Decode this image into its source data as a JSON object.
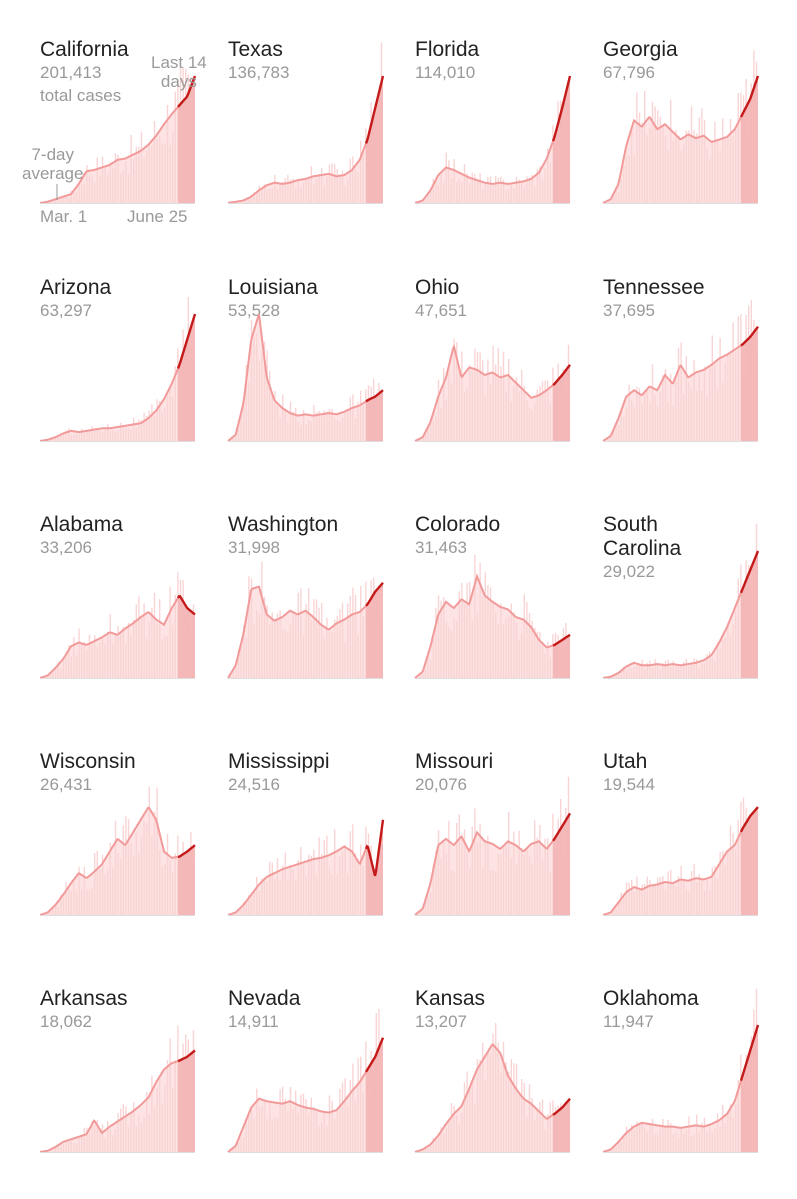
{
  "colors": {
    "bar": "#f9d4d4",
    "area": "#fde3e3",
    "recent_shade": "#f3b2b2",
    "avg_line": "#f29a9a",
    "recent_line": "#c41a1a",
    "axis": "#dddddd"
  },
  "annotations": {
    "last14": "Last 14\ndays",
    "avg": "7-day\naverage",
    "start": "Mar. 1",
    "end": "June 25",
    "total_suffix": "total cases"
  },
  "chart_data": [
    {
      "type": "area",
      "state": "California",
      "total": "201,413",
      "recent_window_days": 14,
      "x_range": [
        "Mar. 1",
        "June 25"
      ],
      "avg_series": [
        0,
        0.1,
        0.3,
        0.5,
        0.7,
        1.5,
        2.5,
        2.6,
        2.8,
        3,
        3.4,
        3.5,
        3.8,
        4.1,
        4.6,
        5.3,
        6.2,
        7.0,
        7.7,
        8.4,
        10
      ]
    },
    {
      "type": "area",
      "state": "Texas",
      "total": "136,783",
      "recent_window_days": 14,
      "x_range": [
        "Mar. 1",
        "June 25"
      ],
      "avg_series": [
        0,
        0.1,
        0.2,
        0.5,
        1.0,
        1.4,
        1.6,
        1.5,
        1.6,
        1.8,
        1.9,
        2.1,
        2.2,
        2.3,
        2.1,
        2.2,
        2.6,
        3.4,
        5.0,
        7.5,
        10
      ]
    },
    {
      "type": "area",
      "state": "Florida",
      "total": "114,010",
      "recent_window_days": 14,
      "x_range": [
        "Mar. 1",
        "June 25"
      ],
      "avg_series": [
        0,
        0.2,
        1.0,
        2.2,
        2.8,
        2.6,
        2.3,
        2.0,
        1.8,
        1.6,
        1.5,
        1.6,
        1.5,
        1.6,
        1.7,
        1.9,
        2.4,
        3.5,
        5.2,
        7.5,
        10
      ]
    },
    {
      "type": "area",
      "state": "Georgia",
      "total": "67,796",
      "recent_window_days": 14,
      "x_range": [
        "Mar. 1",
        "June 25"
      ],
      "avg_series": [
        0,
        0.3,
        1.5,
        4.5,
        6.5,
        6.0,
        6.8,
        5.8,
        6.2,
        5.6,
        5.0,
        5.4,
        5.1,
        5.3,
        4.8,
        5.0,
        5.2,
        5.8,
        7.0,
        8.2,
        10
      ]
    },
    {
      "type": "area",
      "state": "Arizona",
      "total": "63,297",
      "recent_window_days": 14,
      "x_range": [
        "Mar. 1",
        "June 25"
      ],
      "avg_series": [
        0,
        0.1,
        0.3,
        0.6,
        0.8,
        0.7,
        0.8,
        0.9,
        1.0,
        1.0,
        1.1,
        1.2,
        1.3,
        1.4,
        1.8,
        2.4,
        3.3,
        4.5,
        6.0,
        8.0,
        10
      ]
    },
    {
      "type": "area",
      "state": "Louisiana",
      "total": "53,528",
      "recent_window_days": 14,
      "x_range": [
        "Mar. 1",
        "June 25"
      ],
      "avg_series": [
        0,
        0.5,
        3.0,
        8.0,
        10.0,
        5.0,
        3.2,
        2.6,
        2.2,
        2.0,
        2.1,
        2.0,
        2.1,
        2.2,
        2.1,
        2.3,
        2.6,
        2.8,
        3.2,
        3.5,
        4.0
      ]
    },
    {
      "type": "area",
      "state": "Ohio",
      "total": "47,651",
      "recent_window_days": 14,
      "x_range": [
        "Mar. 1",
        "June 25"
      ],
      "avg_series": [
        0,
        0.3,
        1.5,
        3.5,
        5.0,
        7.5,
        5.0,
        5.8,
        5.6,
        5.2,
        5.4,
        5.0,
        5.2,
        4.6,
        4.0,
        3.4,
        3.6,
        4.0,
        4.5,
        5.2,
        6.0
      ]
    },
    {
      "type": "area",
      "state": "Tennessee",
      "total": "37,695",
      "recent_window_days": 14,
      "x_range": [
        "Mar. 1",
        "June 25"
      ],
      "avg_series": [
        0,
        0.4,
        1.8,
        3.5,
        4.0,
        3.6,
        4.3,
        4.0,
        5.2,
        4.5,
        6.0,
        5.0,
        5.4,
        5.6,
        6.0,
        6.5,
        6.8,
        7.2,
        7.6,
        8.2,
        9.0
      ]
    },
    {
      "type": "area",
      "state": "Alabama",
      "total": "33,206",
      "recent_window_days": 14,
      "x_range": [
        "Mar. 1",
        "June 25"
      ],
      "avg_series": [
        0,
        0.2,
        0.8,
        1.5,
        2.5,
        2.8,
        2.6,
        2.9,
        3.2,
        3.6,
        3.4,
        3.9,
        4.3,
        4.8,
        5.2,
        4.6,
        4.2,
        5.5,
        6.5,
        5.5,
        5.0
      ]
    },
    {
      "type": "area",
      "state": "Washington",
      "total": "31,998",
      "recent_window_days": 14,
      "x_range": [
        "Mar. 1",
        "June 25"
      ],
      "avg_series": [
        0,
        1.0,
        3.5,
        7.0,
        7.2,
        5.0,
        4.5,
        4.8,
        5.3,
        5.0,
        5.3,
        4.8,
        4.2,
        3.8,
        4.3,
        4.6,
        5.0,
        5.2,
        5.8,
        6.8,
        7.5
      ]
    },
    {
      "type": "area",
      "state": "Colorado",
      "total": "31,463",
      "recent_window_days": 14,
      "x_range": [
        "Mar. 1",
        "June 25"
      ],
      "avg_series": [
        0,
        0.5,
        2.5,
        5.0,
        6.0,
        5.5,
        6.2,
        5.8,
        8.0,
        6.5,
        6.0,
        5.6,
        5.4,
        4.8,
        4.6,
        4.0,
        3.0,
        2.4,
        2.6,
        3.0,
        3.4
      ]
    },
    {
      "type": "area",
      "state": "South\nCarolina",
      "total": "29,022",
      "recent_window_days": 14,
      "x_range": [
        "Mar. 1",
        "June 25"
      ],
      "avg_series": [
        0,
        0.1,
        0.4,
        0.9,
        1.2,
        1.0,
        1.0,
        1.1,
        1.0,
        1.1,
        1.0,
        1.1,
        1.2,
        1.4,
        1.8,
        2.8,
        4.0,
        5.5,
        7.0,
        8.5,
        10
      ]
    },
    {
      "type": "area",
      "state": "Wisconsin",
      "total": "26,431",
      "recent_window_days": 14,
      "x_range": [
        "Mar. 1",
        "June 25"
      ],
      "avg_series": [
        0,
        0.2,
        0.8,
        1.6,
        2.5,
        3.3,
        2.9,
        3.4,
        4.0,
        5.0,
        6.0,
        5.5,
        6.5,
        7.5,
        8.5,
        7.5,
        5.0,
        4.5,
        4.6,
        5.0,
        5.5
      ]
    },
    {
      "type": "area",
      "state": "Mississippi",
      "total": "24,516",
      "recent_window_days": 14,
      "x_range": [
        "Mar. 1",
        "June 25"
      ],
      "avg_series": [
        0,
        0.2,
        0.8,
        1.6,
        2.4,
        3.0,
        3.3,
        3.6,
        3.8,
        4.0,
        4.2,
        4.4,
        4.5,
        4.7,
        5.0,
        5.4,
        5.0,
        4.0,
        5.5,
        3.0,
        7.5
      ]
    },
    {
      "type": "area",
      "state": "Missouri",
      "total": "20,076",
      "recent_window_days": 14,
      "x_range": [
        "Mar. 1",
        "June 25"
      ],
      "avg_series": [
        0,
        0.5,
        2.5,
        5.5,
        6.0,
        5.5,
        6.2,
        5.0,
        6.5,
        5.8,
        5.6,
        5.2,
        5.8,
        5.5,
        5.0,
        5.6,
        5.8,
        5.2,
        6.0,
        7.0,
        8.0
      ]
    },
    {
      "type": "area",
      "state": "Utah",
      "total": "19,544",
      "recent_window_days": 14,
      "x_range": [
        "Mar. 1",
        "June 25"
      ],
      "avg_series": [
        0,
        0.2,
        1.0,
        1.8,
        2.2,
        2.0,
        2.3,
        2.4,
        2.6,
        2.5,
        2.8,
        2.7,
        2.9,
        2.8,
        3.0,
        4.0,
        5.0,
        5.5,
        6.8,
        7.8,
        8.5
      ]
    },
    {
      "type": "area",
      "state": "Arkansas",
      "total": "18,062",
      "recent_window_days": 14,
      "x_range": [
        "Mar. 1",
        "June 25"
      ],
      "avg_series": [
        0,
        0.1,
        0.4,
        0.8,
        1.0,
        1.2,
        1.4,
        2.5,
        1.5,
        2.0,
        2.4,
        2.8,
        3.2,
        3.7,
        4.3,
        5.5,
        6.5,
        7.0,
        7.2,
        7.5,
        8.0
      ]
    },
    {
      "type": "area",
      "state": "Nevada",
      "total": "14,911",
      "recent_window_days": 14,
      "x_range": [
        "Mar. 1",
        "June 25"
      ],
      "avg_series": [
        0,
        0.5,
        2.0,
        3.5,
        4.2,
        4.0,
        3.9,
        3.8,
        4.0,
        3.7,
        3.5,
        3.4,
        3.2,
        3.1,
        3.3,
        4.0,
        4.8,
        5.5,
        6.5,
        7.5,
        9.0
      ]
    },
    {
      "type": "area",
      "state": "Kansas",
      "total": "13,207",
      "recent_window_days": 14,
      "x_range": [
        "Mar. 1",
        "June 25"
      ],
      "avg_series": [
        0,
        0.2,
        0.6,
        1.3,
        2.2,
        3.0,
        3.6,
        5.0,
        6.5,
        7.5,
        8.5,
        7.8,
        6.0,
        5.0,
        4.2,
        3.8,
        3.2,
        2.6,
        3.0,
        3.5,
        4.2
      ]
    },
    {
      "type": "area",
      "state": "Oklahoma",
      "total": "11,947",
      "recent_window_days": 14,
      "x_range": [
        "Mar. 1",
        "June 25"
      ],
      "avg_series": [
        0,
        0.2,
        0.8,
        1.5,
        2.0,
        2.3,
        2.2,
        2.1,
        2.0,
        2.0,
        1.9,
        2.0,
        2.1,
        2.0,
        2.2,
        2.5,
        3.0,
        4.0,
        6.0,
        8.0,
        10
      ]
    }
  ]
}
